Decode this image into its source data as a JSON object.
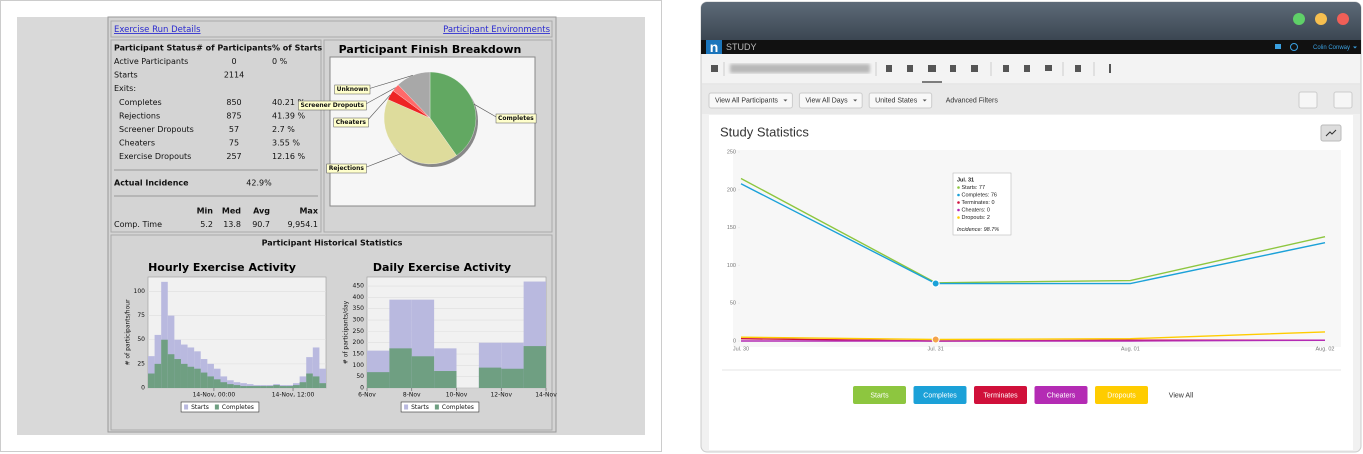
{
  "report": {
    "links": [
      "Exercise Run Details",
      "Participant Environments"
    ],
    "status_headers": [
      "Participant Status",
      "# of Participants",
      "% of Starts"
    ],
    "status_rows": [
      [
        "Active Participants",
        "0",
        "0 %"
      ],
      [
        "Starts",
        "2114"
      ],
      [
        "Exits:"
      ],
      [
        "Completes",
        "850",
        "40.21 %"
      ],
      [
        "Rejections",
        "875",
        "41.39 %"
      ],
      [
        "Screener Dropouts",
        "57",
        "2.7 %"
      ],
      [
        "Cheaters",
        "75",
        "3.55 %"
      ],
      [
        "Exercise Dropouts",
        "257",
        "12.16 %"
      ]
    ],
    "incidence": [
      "Actual Incidence",
      "42.9%"
    ],
    "time_headers": [
      "Min",
      "Med",
      "Avg",
      "Max"
    ],
    "time_row": [
      "Comp. Time",
      "5.2",
      "13.8",
      "90.7",
      "9,954.1"
    ],
    "historical_title": "Participant Historical Statistics"
  },
  "app": {
    "brand": "n",
    "product": "STUDY",
    "user": "Colin Conway",
    "filters": [
      "View All Participants",
      "View All Days",
      "United States"
    ],
    "advanced": "Advanced Filters",
    "view_all": "View All",
    "tooltip": {
      "title": "Jul. 31",
      "rows": [
        "Starts: 77",
        "Completes: 76",
        "Terminates: 0",
        "Cheaters: 0",
        "Dropouts: 2"
      ],
      "incidence": "Incidence: 98.7%"
    }
  },
  "chart_data": [
    {
      "type": "pie",
      "title": "Participant Finish Breakdown",
      "categories": [
        "Completes",
        "Rejections",
        "Cheaters",
        "Screener Dropouts",
        "Unknown"
      ],
      "values": [
        40.21,
        41.39,
        3.55,
        2.7,
        12.16
      ],
      "colors": [
        "#62a862",
        "#dedc9c",
        "#ee2424",
        "#ff6a6a",
        "#a8a8a8"
      ]
    },
    {
      "type": "histogram",
      "title": "Hourly Exercise Activity",
      "ylabel": "# of participants/hour",
      "bins": [
        -10,
        -9,
        -8,
        -7,
        -6,
        -5,
        -4,
        -3,
        -2,
        -1,
        0,
        1,
        2,
        3,
        4,
        5,
        6,
        7,
        8,
        9,
        10,
        11,
        12,
        13,
        14,
        15,
        16,
        17
      ],
      "xlim": [
        -10,
        17
      ],
      "xticks": [
        {
          "value": 0,
          "label": "14-Nov, 00:00"
        },
        {
          "value": 12,
          "label": "14-Nov, 12:00"
        }
      ],
      "ylim": [
        0,
        115
      ],
      "yticks": [
        0,
        25,
        50,
        75,
        100
      ],
      "grid": true,
      "series": [
        {
          "name": "Starts",
          "color": "#b9b9df",
          "values": [
            33,
            55,
            110,
            75,
            50,
            45,
            42,
            38,
            30,
            25,
            20,
            12,
            8,
            6,
            5,
            4,
            3,
            3,
            3,
            4,
            3,
            3,
            5,
            12,
            32,
            42,
            20
          ]
        },
        {
          "name": "Completes",
          "color": "#6f9f82",
          "values": [
            15,
            25,
            50,
            35,
            30,
            25,
            22,
            20,
            16,
            12,
            9,
            6,
            4,
            3,
            2,
            2,
            2,
            2,
            2,
            3,
            2,
            2,
            3,
            6,
            15,
            12,
            5
          ]
        }
      ]
    },
    {
      "type": "histogram",
      "title": "Daily Exercise Activity",
      "ylabel": "# of participants/day",
      "bins": [
        6,
        7,
        8,
        9,
        10,
        11,
        12,
        13,
        14
      ],
      "xlim": [
        6,
        14
      ],
      "xticks": [
        {
          "value": 6,
          "label": "6-Nov"
        },
        {
          "value": 8,
          "label": "8-Nov"
        },
        {
          "value": 10,
          "label": "10-Nov"
        },
        {
          "value": 12,
          "label": "12-Nov"
        },
        {
          "value": 14,
          "label": "14-Nov"
        }
      ],
      "ylim": [
        0,
        490
      ],
      "yticks": [
        0,
        50,
        100,
        150,
        200,
        250,
        300,
        350,
        400,
        450
      ],
      "grid": true,
      "series": [
        {
          "name": "Starts",
          "color": "#b9b9df",
          "values": [
            165,
            390,
            390,
            175,
            0,
            200,
            200,
            470
          ]
        },
        {
          "name": "Completes",
          "color": "#6f9f82",
          "values": [
            70,
            175,
            140,
            75,
            0,
            90,
            85,
            185
          ]
        }
      ]
    },
    {
      "type": "line",
      "title": "Study Statistics",
      "categories": [
        "Jul. 30",
        "Jul. 31",
        "Aug. 01",
        "Aug. 02"
      ],
      "ylim": [
        0,
        250
      ],
      "yticks": [
        0,
        50,
        100,
        150,
        200,
        250
      ],
      "series": [
        {
          "name": "Starts",
          "color": "#8dc63f",
          "values": [
            215,
            77,
            80,
            138
          ]
        },
        {
          "name": "Completes",
          "color": "#1ba1d8",
          "values": [
            208,
            76,
            76,
            130
          ]
        },
        {
          "name": "Terminates",
          "color": "#d0103a",
          "values": [
            3,
            0,
            1,
            1
          ]
        },
        {
          "name": "Cheaters",
          "color": "#b42bb4",
          "values": [
            0,
            0,
            0,
            1
          ]
        },
        {
          "name": "Dropouts",
          "color": "#ffcc00",
          "values": [
            5,
            2,
            3,
            12
          ]
        }
      ]
    }
  ]
}
